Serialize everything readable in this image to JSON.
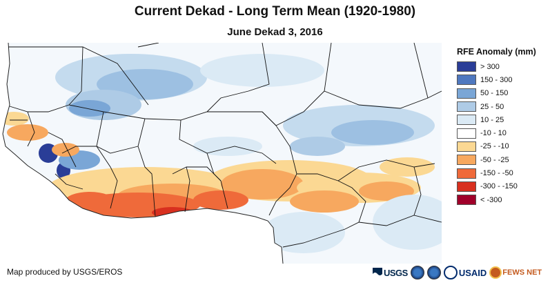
{
  "header": {
    "title": "Current Dekad - Long Term Mean (1920-1980)",
    "subtitle": "June Dekad 3, 2016"
  },
  "legend": {
    "title": "RFE Anomaly (mm)",
    "items": [
      {
        "label": "> 300",
        "color": "#2a3d97"
      },
      {
        "label": "150 - 300",
        "color": "#4f78bf"
      },
      {
        "label": "50 - 150",
        "color": "#7aa6d6"
      },
      {
        "label": "25 - 50",
        "color": "#aecbe6"
      },
      {
        "label": "10 - 25",
        "color": "#dbeaf5"
      },
      {
        "label": "-10 - 10",
        "color": "#ffffff"
      },
      {
        "label": "-25 - -10",
        "color": "#fbd893"
      },
      {
        "label": "-50 - -25",
        "color": "#f7a85f"
      },
      {
        "label": "-150 - -50",
        "color": "#ef6a3a"
      },
      {
        "label": "-300 - -150",
        "color": "#d8301f"
      },
      {
        "label": "< -300",
        "color": "#a0002a"
      }
    ]
  },
  "footer": {
    "credit": "Map produced by USGS/EROS",
    "logos": {
      "usgs": "USGS",
      "usaid": "USAID",
      "fews": "FEWS NET"
    }
  }
}
